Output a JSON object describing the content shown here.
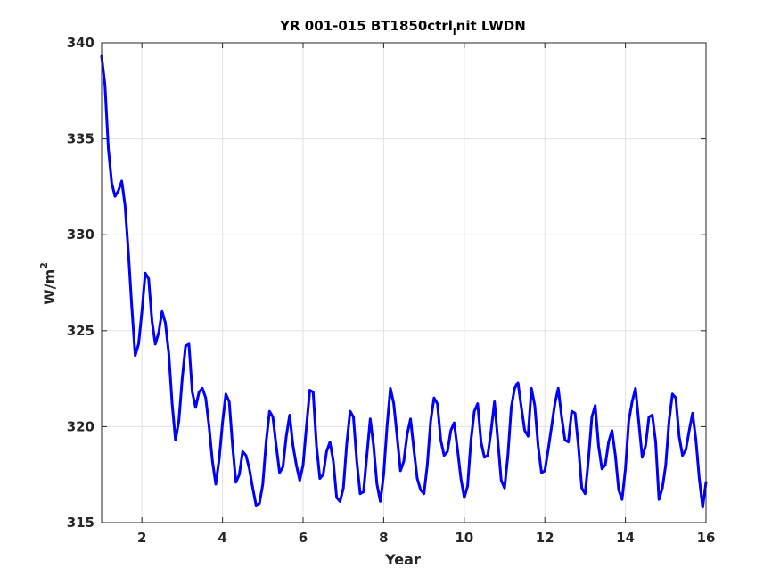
{
  "chart_data": {
    "type": "line",
    "title": "YR 001-015 BT1850ctrl",
    "title_sub": "i",
    "title_suffix": "nit LWDN",
    "xlabel": "Year",
    "ylabel": "W/m",
    "ylabel_sup": "2",
    "xlim": [
      1,
      16
    ],
    "ylim": [
      315,
      340
    ],
    "xticks": [
      2,
      4,
      6,
      8,
      10,
      12,
      14,
      16
    ],
    "yticks": [
      315,
      320,
      325,
      330,
      335,
      340
    ],
    "grid": true,
    "series": [
      {
        "color": "#0000ff",
        "x": [
          1.0,
          1.083,
          1.167,
          1.25,
          1.333,
          1.417,
          1.5,
          1.583,
          1.667,
          1.75,
          1.833,
          1.917,
          2.0,
          2.083,
          2.167,
          2.25,
          2.333,
          2.417,
          2.5,
          2.583,
          2.667,
          2.75,
          2.833,
          2.917,
          3.0,
          3.083,
          3.167,
          3.25,
          3.333,
          3.417,
          3.5,
          3.583,
          3.667,
          3.75,
          3.833,
          3.917,
          4.0,
          4.083,
          4.167,
          4.25,
          4.333,
          4.417,
          4.5,
          4.583,
          4.667,
          4.75,
          4.833,
          4.917,
          5.0,
          5.083,
          5.167,
          5.25,
          5.333,
          5.417,
          5.5,
          5.583,
          5.667,
          5.75,
          5.833,
          5.917,
          6.0,
          6.083,
          6.167,
          6.25,
          6.333,
          6.417,
          6.5,
          6.583,
          6.667,
          6.75,
          6.833,
          6.917,
          7.0,
          7.083,
          7.167,
          7.25,
          7.333,
          7.417,
          7.5,
          7.583,
          7.667,
          7.75,
          7.833,
          7.917,
          8.0,
          8.083,
          8.167,
          8.25,
          8.333,
          8.417,
          8.5,
          8.583,
          8.667,
          8.75,
          8.833,
          8.917,
          9.0,
          9.083,
          9.167,
          9.25,
          9.333,
          9.417,
          9.5,
          9.583,
          9.667,
          9.75,
          9.833,
          9.917,
          10.0,
          10.083,
          10.167,
          10.25,
          10.333,
          10.417,
          10.5,
          10.583,
          10.667,
          10.75,
          10.833,
          10.917,
          11.0,
          11.083,
          11.167,
          11.25,
          11.333,
          11.417,
          11.5,
          11.583,
          11.667,
          11.75,
          11.833,
          11.917,
          12.0,
          12.083,
          12.167,
          12.25,
          12.333,
          12.417,
          12.5,
          12.583,
          12.667,
          12.75,
          12.833,
          12.917,
          13.0,
          13.083,
          13.167,
          13.25,
          13.333,
          13.417,
          13.5,
          13.583,
          13.667,
          13.75,
          13.833,
          13.917,
          14.0,
          14.083,
          14.167,
          14.25,
          14.333,
          14.417,
          14.5,
          14.583,
          14.667,
          14.75,
          14.833,
          14.917,
          15.0,
          15.083,
          15.167,
          15.25,
          15.333,
          15.417,
          15.5,
          15.583,
          15.667,
          15.75,
          15.833,
          15.917,
          16.0
        ],
        "y": [
          339.3,
          337.8,
          334.5,
          332.7,
          332.0,
          332.3,
          332.8,
          331.5,
          329.0,
          326.2,
          323.7,
          324.3,
          326.0,
          328.0,
          327.7,
          325.5,
          324.3,
          324.9,
          326.0,
          325.4,
          323.8,
          321.2,
          319.3,
          320.3,
          322.5,
          324.2,
          324.3,
          321.8,
          321.0,
          321.8,
          322.0,
          321.5,
          320.0,
          318.2,
          317.0,
          318.3,
          320.2,
          321.7,
          321.3,
          319.0,
          317.1,
          317.5,
          318.7,
          318.5,
          317.8,
          316.8,
          315.9,
          316.0,
          317.0,
          319.2,
          320.8,
          320.5,
          319.0,
          317.6,
          317.9,
          319.5,
          320.6,
          319.0,
          318.0,
          317.2,
          318.0,
          320.0,
          321.9,
          321.8,
          319.0,
          317.3,
          317.5,
          318.7,
          319.2,
          318.2,
          316.3,
          316.1,
          316.8,
          319.1,
          320.8,
          320.5,
          318.2,
          316.5,
          316.6,
          318.5,
          320.4,
          319.0,
          317.0,
          316.1,
          317.5,
          320.0,
          322.0,
          321.2,
          319.5,
          317.7,
          318.2,
          319.6,
          320.4,
          318.8,
          317.3,
          316.7,
          316.5,
          318.0,
          320.3,
          321.5,
          321.2,
          319.3,
          318.5,
          318.7,
          319.8,
          320.2,
          318.8,
          317.3,
          316.3,
          316.9,
          319.3,
          320.8,
          321.2,
          319.2,
          318.4,
          318.5,
          319.8,
          321.3,
          319.3,
          317.2,
          316.8,
          318.5,
          321.0,
          322.0,
          322.3,
          321.0,
          319.8,
          319.5,
          322.0,
          321.1,
          319.0,
          317.6,
          317.7,
          318.8,
          320.0,
          321.2,
          322.0,
          320.5,
          319.3,
          319.2,
          320.8,
          320.7,
          319.0,
          316.8,
          316.5,
          318.3,
          320.5,
          321.1,
          319.0,
          317.8,
          318.0,
          319.2,
          319.8,
          318.5,
          316.7,
          316.2,
          317.8,
          320.3,
          321.3,
          322.0,
          320.2,
          318.4,
          319.0,
          320.5,
          320.6,
          319.2,
          316.2,
          316.8,
          318.0,
          320.3,
          321.7,
          321.5,
          319.5,
          318.5,
          318.8,
          319.8,
          320.7,
          319.3,
          317.3,
          315.8,
          317.1
        ]
      }
    ]
  }
}
